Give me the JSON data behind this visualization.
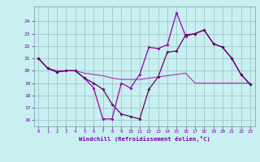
{
  "x": [
    0,
    1,
    2,
    3,
    4,
    5,
    6,
    7,
    8,
    9,
    10,
    11,
    12,
    13,
    14,
    15,
    16,
    17,
    18,
    19,
    20,
    21,
    22,
    23
  ],
  "line1": [
    21.0,
    20.2,
    19.9,
    20.0,
    20.0,
    19.4,
    18.6,
    16.1,
    16.1,
    19.0,
    18.6,
    19.7,
    21.9,
    21.8,
    22.1,
    24.7,
    22.8,
    23.0,
    23.3,
    22.2,
    21.9,
    21.0,
    19.7,
    18.9
  ],
  "line2": [
    21.0,
    20.2,
    19.9,
    20.0,
    20.0,
    19.4,
    19.0,
    18.5,
    17.3,
    16.5,
    16.3,
    16.1,
    18.5,
    19.5,
    21.5,
    21.6,
    22.9,
    23.0,
    23.3,
    22.2,
    21.9,
    21.0,
    19.7,
    18.9
  ],
  "line3": [
    21.0,
    20.2,
    20.0,
    20.0,
    20.0,
    19.8,
    19.7,
    19.6,
    19.4,
    19.3,
    19.3,
    19.3,
    19.4,
    19.5,
    19.6,
    19.7,
    19.8,
    19.0,
    19.0,
    19.0,
    19.0,
    19.0,
    19.0,
    19.0
  ],
  "bg_color": "#c8f0f0",
  "grid_color": "#a0c8c8",
  "line_color1": "#9900aa",
  "line_color2": "#660066",
  "line_color3": "#aa44bb",
  "xlabel": "Windchill (Refroidissement éolien,°C)",
  "ylim": [
    15.5,
    25.2
  ],
  "xlim_min": -0.5,
  "xlim_max": 23.5,
  "yticks": [
    16,
    17,
    18,
    19,
    20,
    21,
    22,
    23,
    24
  ],
  "xticks": [
    0,
    1,
    2,
    3,
    4,
    5,
    6,
    7,
    8,
    9,
    10,
    11,
    12,
    13,
    14,
    15,
    16,
    17,
    18,
    19,
    20,
    21,
    22,
    23
  ],
  "marker": "D",
  "markersize": 2.0,
  "linewidth": 0.9
}
